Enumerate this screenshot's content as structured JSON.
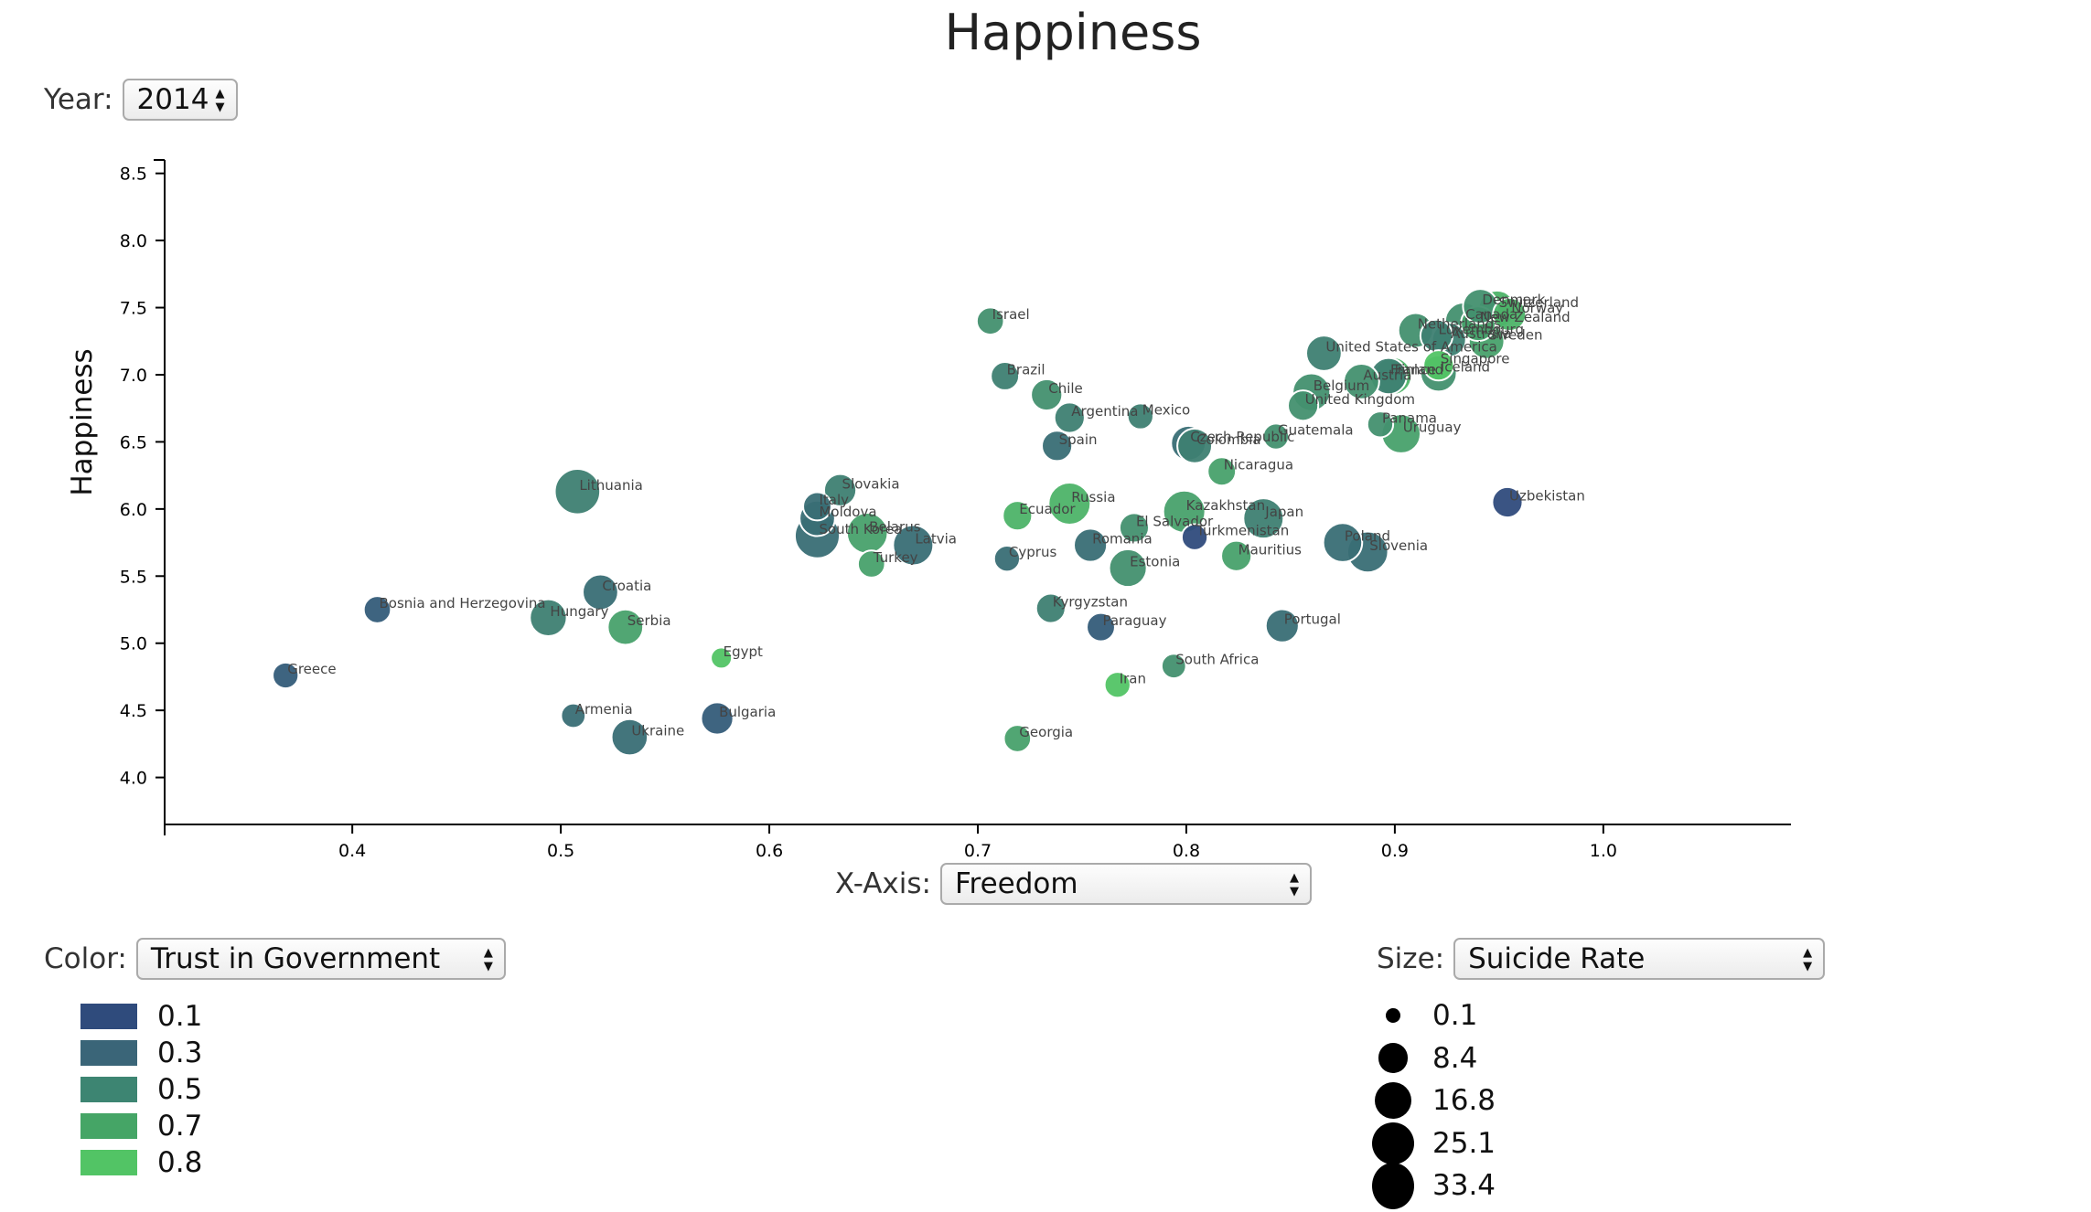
{
  "title": "Happiness",
  "controls": {
    "year": {
      "label": "Year:",
      "value": "2014"
    },
    "x_axis": {
      "label": "X-Axis:",
      "value": "Freedom"
    },
    "color": {
      "label": "Color:",
      "value": "Trust in Government"
    },
    "size": {
      "label": "Size:",
      "value": "Suicide Rate"
    }
  },
  "legend_color": {
    "items": [
      {
        "label": "0.1",
        "color": "#2f4b7c"
      },
      {
        "label": "0.3",
        "color": "#3a6578"
      },
      {
        "label": "0.5",
        "color": "#3d8572"
      },
      {
        "label": "0.7",
        "color": "#45a566"
      },
      {
        "label": "0.8",
        "color": "#52c465"
      }
    ]
  },
  "legend_size": {
    "items": [
      {
        "label": "0.1",
        "value": 0.1
      },
      {
        "label": "8.4",
        "value": 8.4
      },
      {
        "label": "16.8",
        "value": 16.8
      },
      {
        "label": "25.1",
        "value": 25.1
      },
      {
        "label": "33.4",
        "value": 33.4
      }
    ]
  },
  "chart_data": {
    "type": "scatter",
    "title": "Happiness",
    "xlabel": "",
    "ylabel": "Happiness",
    "xlim": [
      0.31,
      1.09
    ],
    "ylim": [
      3.65,
      8.6
    ],
    "xticks": [
      "0.4",
      "0.5",
      "0.6",
      "0.7",
      "0.8",
      "0.9",
      "1.0"
    ],
    "yticks": [
      "4.0",
      "4.5",
      "5.0",
      "5.5",
      "6.0",
      "6.5",
      "7.0",
      "7.5",
      "8.0",
      "8.5"
    ],
    "point_color_scale": [
      "#2f4b7c",
      "#52c465"
    ],
    "points": [
      {
        "label": "Greece",
        "x": 0.368,
        "y": 4.76,
        "trust": 0.2,
        "suicide": 5
      },
      {
        "label": "Bosnia and Herzegovina",
        "x": 0.412,
        "y": 5.25,
        "trust": 0.2,
        "suicide": 6
      },
      {
        "label": "Lithuania",
        "x": 0.508,
        "y": 6.13,
        "trust": 0.4,
        "suicide": 31
      },
      {
        "label": "Croatia",
        "x": 0.519,
        "y": 5.38,
        "trust": 0.3,
        "suicide": 15
      },
      {
        "label": "Hungary",
        "x": 0.494,
        "y": 5.19,
        "trust": 0.4,
        "suicide": 17
      },
      {
        "label": "Serbia",
        "x": 0.531,
        "y": 5.12,
        "trust": 0.6,
        "suicide": 15
      },
      {
        "label": "Armenia",
        "x": 0.506,
        "y": 4.46,
        "trust": 0.3,
        "suicide": 4
      },
      {
        "label": "Ukraine",
        "x": 0.533,
        "y": 4.3,
        "trust": 0.3,
        "suicide": 16
      },
      {
        "label": "Bulgaria",
        "x": 0.575,
        "y": 4.44,
        "trust": 0.2,
        "suicide": 11
      },
      {
        "label": "Egypt",
        "x": 0.577,
        "y": 4.89,
        "trust": 0.8,
        "suicide": 2
      },
      {
        "label": "Slovakia",
        "x": 0.634,
        "y": 6.14,
        "trust": 0.4,
        "suicide": 11
      },
      {
        "label": "Italy",
        "x": 0.623,
        "y": 6.02,
        "trust": 0.3,
        "suicide": 7
      },
      {
        "label": "Moldova",
        "x": 0.623,
        "y": 5.93,
        "trust": 0.3,
        "suicide": 15
      },
      {
        "label": "South Korea",
        "x": 0.623,
        "y": 5.8,
        "trust": 0.3,
        "suicide": 30
      },
      {
        "label": "Belarus",
        "x": 0.647,
        "y": 5.82,
        "trust": 0.6,
        "suicide": 23
      },
      {
        "label": "Latvia",
        "x": 0.669,
        "y": 5.73,
        "trust": 0.3,
        "suicide": 22
      },
      {
        "label": "Turkey",
        "x": 0.649,
        "y": 5.59,
        "trust": 0.6,
        "suicide": 6
      },
      {
        "label": "Israel",
        "x": 0.706,
        "y": 7.4,
        "trust": 0.5,
        "suicide": 6
      },
      {
        "label": "Brazil",
        "x": 0.713,
        "y": 6.99,
        "trust": 0.4,
        "suicide": 7
      },
      {
        "label": "Chile",
        "x": 0.733,
        "y": 6.85,
        "trust": 0.5,
        "suicide": 10
      },
      {
        "label": "Argentina",
        "x": 0.744,
        "y": 6.68,
        "trust": 0.4,
        "suicide": 9
      },
      {
        "label": "Mexico",
        "x": 0.778,
        "y": 6.69,
        "trust": 0.4,
        "suicide": 5
      },
      {
        "label": "Spain",
        "x": 0.738,
        "y": 6.47,
        "trust": 0.3,
        "suicide": 9
      },
      {
        "label": "Ecuador",
        "x": 0.719,
        "y": 5.95,
        "trust": 0.7,
        "suicide": 8
      },
      {
        "label": "Russia",
        "x": 0.744,
        "y": 6.04,
        "trust": 0.7,
        "suicide": 25
      },
      {
        "label": "El Salvador",
        "x": 0.775,
        "y": 5.86,
        "trust": 0.5,
        "suicide": 8
      },
      {
        "label": "Romania",
        "x": 0.754,
        "y": 5.73,
        "trust": 0.3,
        "suicide": 12
      },
      {
        "label": "Cyprus",
        "x": 0.714,
        "y": 5.63,
        "trust": 0.3,
        "suicide": 5
      },
      {
        "label": "Estonia",
        "x": 0.772,
        "y": 5.56,
        "trust": 0.5,
        "suicide": 18
      },
      {
        "label": "Kyrgyzstan",
        "x": 0.735,
        "y": 5.26,
        "trust": 0.4,
        "suicide": 8
      },
      {
        "label": "Paraguay",
        "x": 0.759,
        "y": 5.12,
        "trust": 0.2,
        "suicide": 7
      },
      {
        "label": "Georgia",
        "x": 0.719,
        "y": 4.29,
        "trust": 0.6,
        "suicide": 6
      },
      {
        "label": "Iran",
        "x": 0.767,
        "y": 4.69,
        "trust": 0.8,
        "suicide": 5
      },
      {
        "label": "South Africa",
        "x": 0.794,
        "y": 4.83,
        "trust": 0.5,
        "suicide": 4
      },
      {
        "label": "Czech Republic",
        "x": 0.801,
        "y": 6.49,
        "trust": 0.3,
        "suicide": 14
      },
      {
        "label": "Colombia",
        "x": 0.804,
        "y": 6.47,
        "trust": 0.4,
        "suicide": 14
      },
      {
        "label": "Nicaragua",
        "x": 0.817,
        "y": 6.28,
        "trust": 0.6,
        "suicide": 7
      },
      {
        "label": "Kazakhstan",
        "x": 0.799,
        "y": 5.98,
        "trust": 0.6,
        "suicide": 25
      },
      {
        "label": "Turkmenistan",
        "x": 0.804,
        "y": 5.79,
        "trust": 0.1,
        "suicide": 5
      },
      {
        "label": "Mauritius",
        "x": 0.824,
        "y": 5.65,
        "trust": 0.6,
        "suicide": 9
      },
      {
        "label": "Japan",
        "x": 0.837,
        "y": 5.93,
        "trust": 0.4,
        "suicide": 22
      },
      {
        "label": "Guatemala",
        "x": 0.843,
        "y": 6.54,
        "trust": 0.5,
        "suicide": 5
      },
      {
        "label": "Portugal",
        "x": 0.846,
        "y": 5.13,
        "trust": 0.3,
        "suicide": 12
      },
      {
        "label": "Singapore",
        "x": 0.921,
        "y": 7.07,
        "trust": 0.8,
        "suicide": 9
      },
      {
        "label": "United States of America",
        "x": 0.866,
        "y": 7.16,
        "trust": 0.4,
        "suicide": 15
      },
      {
        "label": "Belgium",
        "x": 0.86,
        "y": 6.87,
        "trust": 0.5,
        "suicide": 18
      },
      {
        "label": "United Kingdom",
        "x": 0.856,
        "y": 6.77,
        "trust": 0.5,
        "suicide": 9
      },
      {
        "label": "Austria",
        "x": 0.884,
        "y": 6.95,
        "trust": 0.5,
        "suicide": 15
      },
      {
        "label": "Panama",
        "x": 0.893,
        "y": 6.63,
        "trust": 0.5,
        "suicide": 5
      },
      {
        "label": "Uruguay",
        "x": 0.903,
        "y": 6.56,
        "trust": 0.6,
        "suicide": 20
      },
      {
        "label": "Poland",
        "x": 0.875,
        "y": 5.75,
        "trust": 0.3,
        "suicide": 20
      },
      {
        "label": "Slovenia",
        "x": 0.887,
        "y": 5.68,
        "trust": 0.3,
        "suicide": 23
      },
      {
        "label": "France",
        "x": 0.897,
        "y": 6.99,
        "trust": 0.4,
        "suicide": 16
      },
      {
        "label": "Finland",
        "x": 0.899,
        "y": 6.99,
        "trust": 0.7,
        "suicide": 18
      },
      {
        "label": "Iceland",
        "x": 0.921,
        "y": 7.01,
        "trust": 0.5,
        "suicide": 16
      },
      {
        "label": "Netherlands",
        "x": 0.91,
        "y": 7.33,
        "trust": 0.5,
        "suicide": 14
      },
      {
        "label": "Luxembourg",
        "x": 0.92,
        "y": 7.29,
        "trust": 0.4,
        "suicide": 11
      },
      {
        "label": "Australia",
        "x": 0.926,
        "y": 7.26,
        "trust": 0.4,
        "suicide": 13
      },
      {
        "label": "Canada",
        "x": 0.933,
        "y": 7.4,
        "trust": 0.5,
        "suicide": 17
      },
      {
        "label": "New Zealand",
        "x": 0.94,
        "y": 7.38,
        "trust": 0.6,
        "suicide": 14
      },
      {
        "label": "Denmark",
        "x": 0.941,
        "y": 7.51,
        "trust": 0.5,
        "suicide": 14
      },
      {
        "label": "Sweden",
        "x": 0.944,
        "y": 7.25,
        "trust": 0.6,
        "suicide": 15
      },
      {
        "label": "Switzerland",
        "x": 0.949,
        "y": 7.49,
        "trust": 0.7,
        "suicide": 17
      },
      {
        "label": "Norway",
        "x": 0.955,
        "y": 7.45,
        "trust": 0.7,
        "suicide": 12
      },
      {
        "label": "Uzbekistan",
        "x": 0.954,
        "y": 6.05,
        "trust": 0.1,
        "suicide": 9
      }
    ]
  }
}
